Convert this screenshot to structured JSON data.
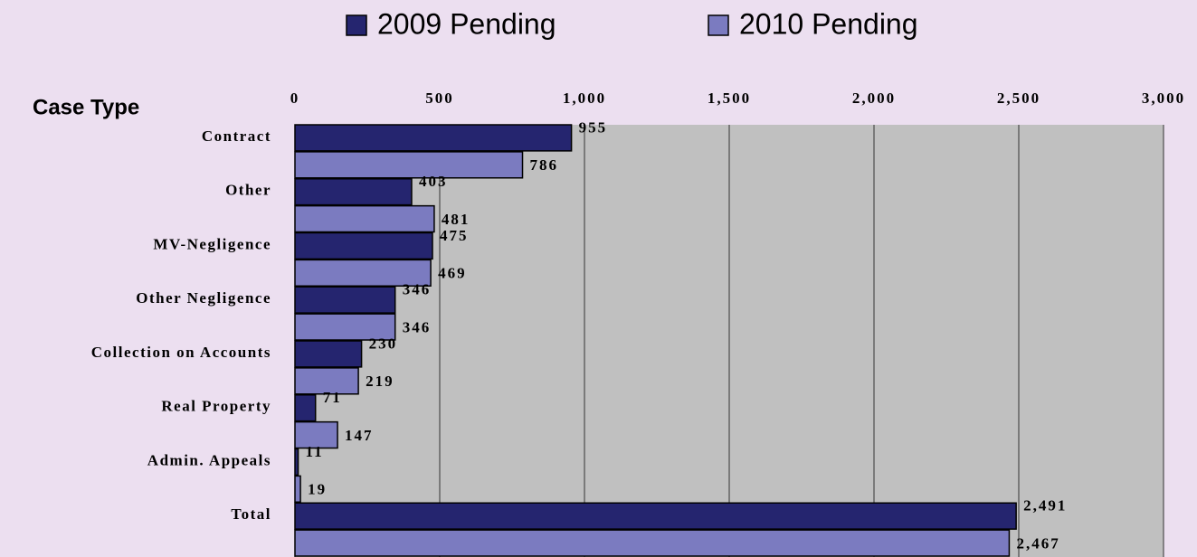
{
  "chart_data": {
    "type": "hbar",
    "y_label": "Case Type",
    "categories": [
      "Contract",
      "Other",
      "MV-Negligence",
      "Other Negligence",
      "Collection on Accounts",
      "Real Property",
      "Admin. Appeals",
      "Total"
    ],
    "series": [
      {
        "name": "2009 Pending",
        "color": "#25256f",
        "values": [
          955,
          403,
          475,
          346,
          230,
          71,
          11,
          2491
        ],
        "value_labels": [
          "955",
          "403",
          "475",
          "346",
          "230",
          "71",
          "11",
          "2,491"
        ]
      },
      {
        "name": "2010 Pending",
        "color": "#7b7bc0",
        "values": [
          786,
          481,
          469,
          346,
          219,
          147,
          19,
          2467
        ],
        "value_labels": [
          "786",
          "481",
          "469",
          "346",
          "219",
          "147",
          "19",
          "2,467"
        ]
      }
    ],
    "xlim": [
      0,
      3000
    ],
    "xticks": [
      0,
      500,
      {
        "value": 1000,
        "label": "1,000"
      },
      {
        "value": 1500,
        "label": "1,500"
      },
      {
        "value": 2000,
        "label": "2,000"
      },
      {
        "value": 2500,
        "label": "2,500"
      },
      {
        "value": 3000,
        "label": "3,000"
      }
    ],
    "grid": true,
    "legend": "top"
  }
}
